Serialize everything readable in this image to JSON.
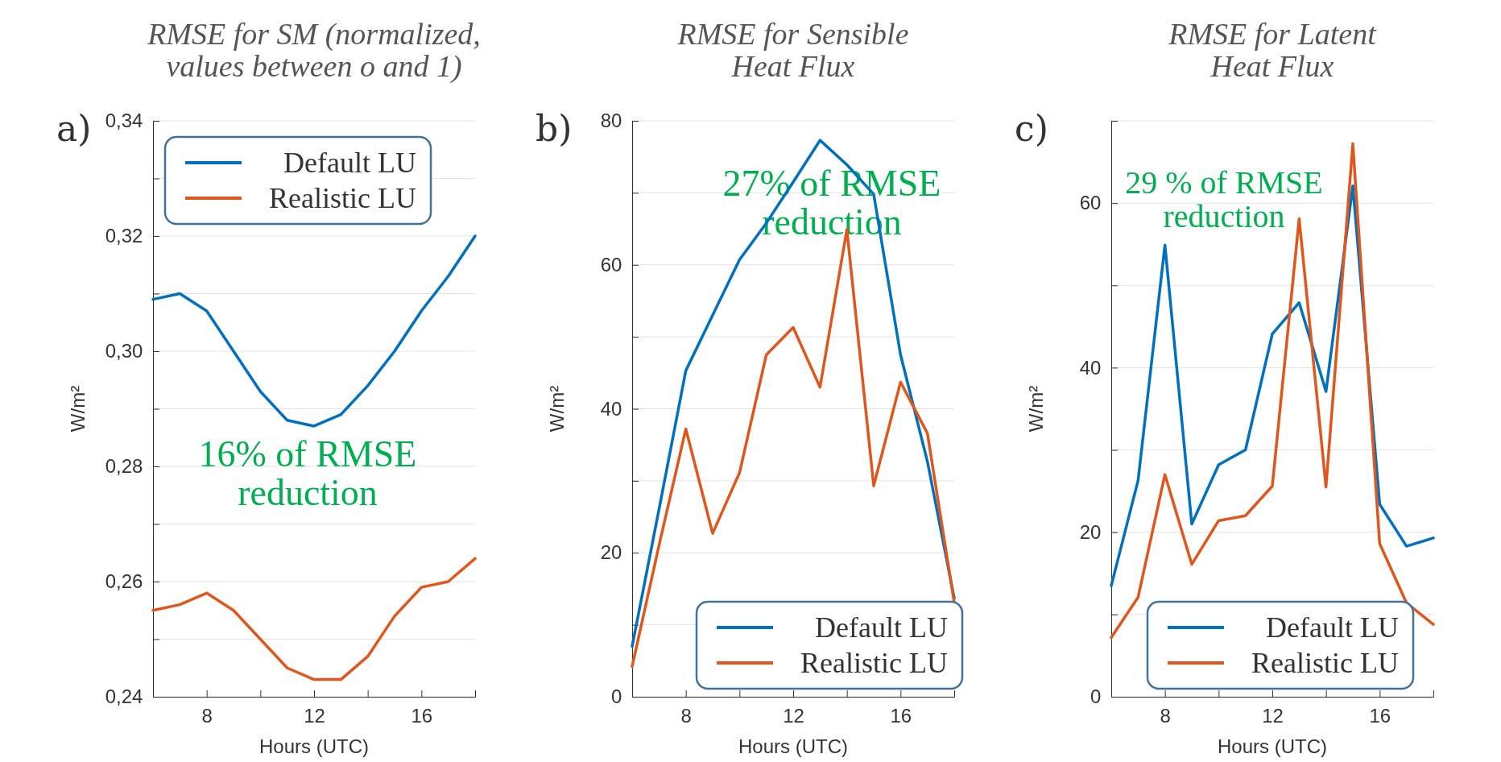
{
  "chart_data": [
    {
      "type": "line",
      "title": "RMSE for SM (normalized, values between o and 1)",
      "xlabel": "Hours (UTC)",
      "ylabel": "W/m²",
      "annotations": [
        "a)",
        "16% of RMSE reduction"
      ],
      "x": [
        6,
        7,
        8,
        9,
        10,
        11,
        12,
        13,
        14,
        15,
        16,
        17,
        18
      ],
      "series": [
        {
          "name": "Default LU",
          "color": "#0070c0",
          "values": [
            0.309,
            0.31,
            0.307,
            0.3,
            0.293,
            0.288,
            0.287,
            0.289,
            0.294,
            0.3,
            0.307,
            0.313,
            0.32
          ]
        },
        {
          "name": "Realistic LU",
          "color": "#e0561b",
          "values": [
            0.255,
            0.256,
            0.258,
            0.255,
            0.25,
            0.245,
            0.243,
            0.243,
            0.247,
            0.254,
            0.259,
            0.26,
            0.264
          ]
        }
      ],
      "xlim": [
        6,
        18
      ],
      "xticks": [
        8,
        {
          "value": 10,
          "label": null
        },
        12,
        {
          "value": 14,
          "label": null
        },
        16,
        {
          "value": 18,
          "label": null
        }
      ],
      "ylim": [
        0.24,
        0.34
      ],
      "yticks": [
        {
          "value": 0.24,
          "label": "0,24"
        },
        {
          "value": 0.25,
          "label": null
        },
        {
          "value": 0.26,
          "label": "0,26"
        },
        {
          "value": 0.27,
          "label": null
        },
        {
          "value": 0.28,
          "label": "0,28"
        },
        {
          "value": 0.29,
          "label": null
        },
        {
          "value": 0.3,
          "label": "0,30"
        },
        {
          "value": 0.31,
          "label": null
        },
        {
          "value": 0.32,
          "label": "0,32"
        },
        {
          "value": 0.33,
          "label": null
        },
        {
          "value": 0.34,
          "label": "0,34"
        }
      ],
      "grid": "y",
      "legend": "top"
    },
    {
      "type": "line",
      "title": "RMSE for Sensible Heat Flux",
      "xlabel": "Hours (UTC)",
      "ylabel": "W/m²",
      "annotations": [
        "b)",
        "27% of RMSE reduction"
      ],
      "x": [
        6,
        7,
        8,
        9,
        10,
        11,
        12,
        13,
        14,
        15,
        16,
        17,
        18
      ],
      "series": [
        {
          "name": "Default LU",
          "color": "#0070c0",
          "values": [
            7,
            26,
            45.3,
            53,
            60.7,
            65.8,
            71.5,
            77.3,
            73.9,
            69.8,
            47.5,
            32.7,
            13.7
          ]
        },
        {
          "name": "Realistic LU",
          "color": "#e0561b",
          "values": [
            4.2,
            21,
            37.2,
            22.7,
            31.1,
            47.5,
            51.3,
            43,
            64.9,
            29.3,
            43.7,
            36.6,
            13.1
          ]
        }
      ],
      "xlim": [
        6,
        18
      ],
      "xticks": [
        8,
        {
          "value": 10,
          "label": null
        },
        12,
        {
          "value": 14,
          "label": null
        },
        16,
        {
          "value": 18,
          "label": null
        }
      ],
      "ylim": [
        0,
        80
      ],
      "yticks": [
        0,
        {
          "value": 10,
          "label": null
        },
        20,
        {
          "value": 30,
          "label": null
        },
        40,
        {
          "value": 50,
          "label": null
        },
        60,
        {
          "value": 70,
          "label": null
        },
        80
      ],
      "grid": "y",
      "legend": "bottom right"
    },
    {
      "type": "line",
      "title": "RMSE for Latent Heat Flux",
      "xlabel": "Hours (UTC)",
      "ylabel": "W/m²",
      "annotations": [
        "c)",
        "29 % of RMSE reduction"
      ],
      "x": [
        6,
        7,
        8,
        9,
        10,
        11,
        12,
        13,
        14,
        15,
        16,
        17,
        18
      ],
      "series": [
        {
          "name": "Default LU",
          "color": "#0070c0",
          "values": [
            13.5,
            26.3,
            54.9,
            21,
            28.2,
            30,
            44.1,
            47.9,
            37.1,
            62.1,
            23.4,
            18.3,
            19.3
          ]
        },
        {
          "name": "Realistic LU",
          "color": "#e0561b",
          "values": [
            7.2,
            12.1,
            27,
            16.1,
            21.4,
            22,
            25.6,
            58.1,
            25.5,
            67.2,
            18.6,
            11.4,
            8.8
          ]
        }
      ],
      "xlim": [
        6,
        18
      ],
      "xticks": [
        8,
        {
          "value": 10,
          "label": null
        },
        12,
        {
          "value": 14,
          "label": null
        },
        16,
        {
          "value": 18,
          "label": null
        }
      ],
      "ylim": [
        0,
        70
      ],
      "yticks": [
        0,
        {
          "value": 10,
          "label": null
        },
        20,
        {
          "value": 30,
          "label": null
        },
        40,
        {
          "value": 50,
          "label": null
        },
        60,
        {
          "value": 70,
          "label": null
        }
      ],
      "grid": "y",
      "legend": "bottom"
    }
  ]
}
